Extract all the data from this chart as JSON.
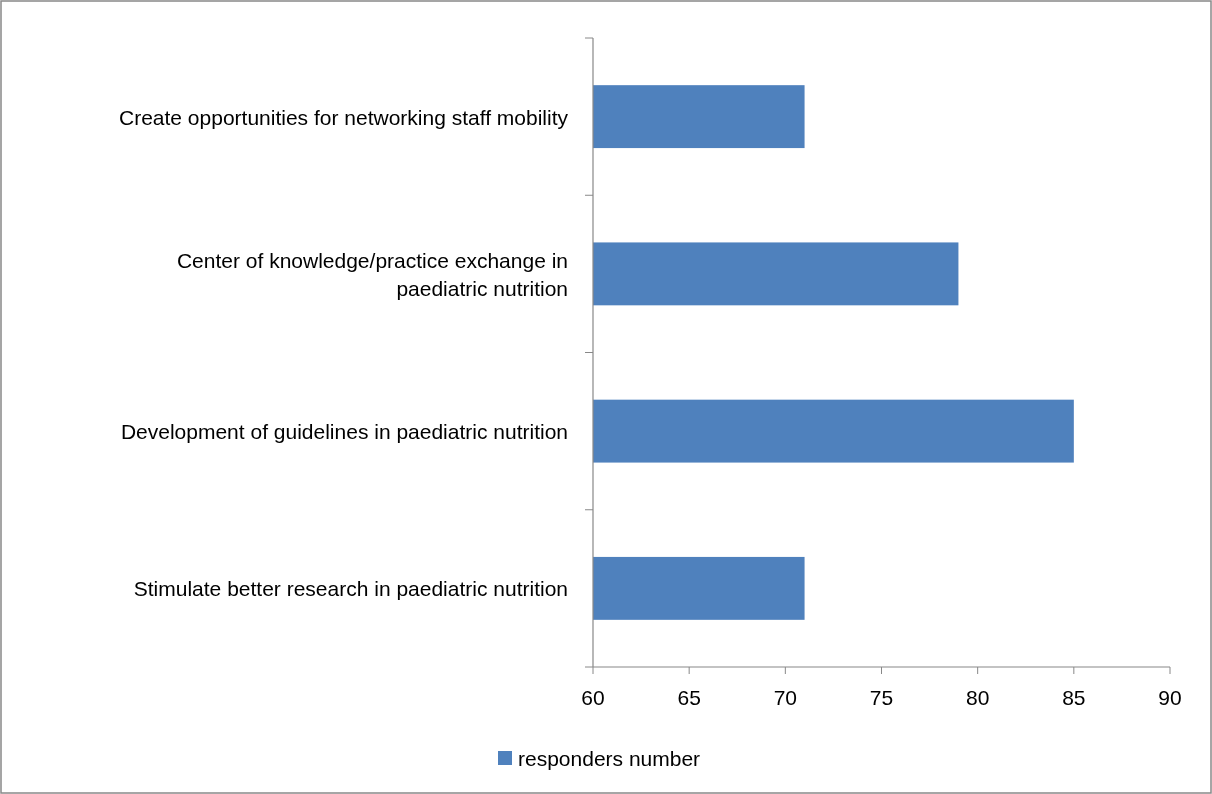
{
  "chart_data": {
    "type": "bar",
    "orientation": "horizontal",
    "categories": [
      "Create opportunities for networking staff mobility",
      "Center of knowledge/practice exchange in paediatric nutrition",
      "Development of guidelines in paediatric nutrition",
      "Stimulate better research in paediatric nutrition"
    ],
    "series": [
      {
        "name": "responders number",
        "color": "#4f81bd",
        "values": [
          71,
          79,
          85,
          71
        ]
      }
    ],
    "xlim": [
      60,
      90
    ],
    "xticks": [
      60,
      65,
      70,
      75,
      80,
      85,
      90
    ],
    "grid": false,
    "legend": "bottom"
  }
}
